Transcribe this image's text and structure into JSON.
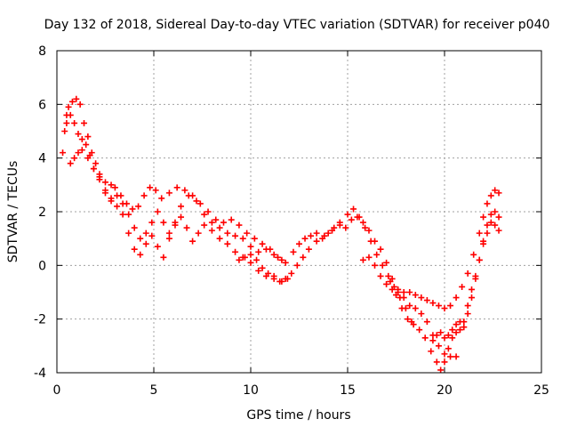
{
  "chart_data": {
    "type": "scatter",
    "title": "Day 132 of 2018, Sidereal Day-to-day VTEC variation (SDTVAR) for receiver p040",
    "xlabel": "GPS time / hours",
    "ylabel": "SDTVAR / TECUs",
    "xlim": [
      0,
      25
    ],
    "ylim": [
      -4,
      8
    ],
    "xticks": [
      0,
      5,
      10,
      15,
      20,
      25
    ],
    "yticks": [
      -4,
      -2,
      0,
      2,
      4,
      6,
      8
    ],
    "xtick_labels": [
      "0",
      "5",
      "10",
      "15",
      "20",
      "25"
    ],
    "ytick_labels": [
      "-4",
      "-2",
      "0",
      "2",
      "4",
      "6",
      "8"
    ],
    "grid": true,
    "legend": "none",
    "marker": "+",
    "series": [
      {
        "name": "track-1",
        "color": "#ff0000",
        "x": [
          0.3,
          0.4,
          0.5,
          0.6,
          0.8,
          1.0,
          1.2,
          1.4,
          1.6,
          1.8,
          2.0,
          2.2,
          2.5,
          2.8,
          3.0,
          3.3,
          3.6,
          3.9,
          4.2,
          4.5,
          4.8,
          5.1,
          5.4,
          5.8,
          6.2,
          6.6,
          7.0,
          7.4,
          7.8,
          8.2,
          8.6,
          9.0,
          9.4,
          9.8,
          10.2,
          10.6,
          11.0,
          11.4,
          11.8
        ],
        "y": [
          4.2,
          5.0,
          5.6,
          5.9,
          6.1,
          6.2,
          6.0,
          5.3,
          4.8,
          4.2,
          3.8,
          3.4,
          3.1,
          3.0,
          2.9,
          2.6,
          2.3,
          2.1,
          2.2,
          2.6,
          2.9,
          2.8,
          2.5,
          2.7,
          2.9,
          2.8,
          2.6,
          2.3,
          2.0,
          1.7,
          1.6,
          1.7,
          1.5,
          1.2,
          1.0,
          0.8,
          0.6,
          0.3,
          0.1
        ]
      },
      {
        "name": "track-2",
        "color": "#ff0000",
        "x": [
          0.5,
          0.7,
          0.9,
          1.1,
          1.3,
          1.5,
          1.7,
          1.9,
          2.2,
          2.5,
          2.8,
          3.1,
          3.4,
          3.7,
          4.0,
          4.3,
          4.6,
          4.9,
          5.2,
          5.5,
          5.8,
          6.1,
          6.4,
          6.8,
          7.2,
          7.6,
          8.0,
          8.4,
          8.8,
          9.2,
          9.6,
          10.0,
          10.4,
          10.8,
          11.2,
          11.6
        ],
        "y": [
          5.3,
          5.6,
          5.3,
          4.9,
          4.7,
          4.5,
          4.1,
          3.6,
          3.3,
          2.8,
          2.5,
          2.6,
          2.3,
          1.9,
          1.4,
          1.0,
          1.2,
          1.6,
          2.0,
          1.6,
          1.2,
          1.5,
          2.2,
          2.6,
          2.4,
          1.9,
          1.6,
          1.4,
          1.2,
          1.1,
          1.0,
          0.7,
          0.5,
          0.6,
          0.4,
          0.2
        ]
      },
      {
        "name": "track-3",
        "color": "#ff0000",
        "x": [
          0.7,
          0.9,
          1.1,
          1.3,
          1.6,
          1.9,
          2.2,
          2.5,
          2.8,
          3.1,
          3.4,
          3.7,
          4.0,
          4.3,
          4.6,
          4.9,
          5.2,
          5.5,
          5.8,
          6.1,
          6.4,
          6.7,
          7.0,
          7.3,
          7.6,
          8.0,
          8.4,
          8.8,
          9.2,
          9.6,
          10.0,
          10.4,
          10.8,
          11.2,
          11.6,
          11.9
        ],
        "y": [
          3.8,
          4.0,
          4.2,
          4.3,
          4.0,
          3.6,
          3.2,
          2.7,
          2.4,
          2.2,
          1.9,
          1.2,
          0.6,
          0.4,
          0.8,
          1.1,
          0.7,
          0.3,
          1.0,
          1.6,
          1.8,
          1.4,
          0.9,
          1.2,
          1.5,
          1.3,
          1.0,
          0.8,
          0.5,
          0.3,
          0.1,
          -0.2,
          -0.4,
          -0.5,
          -0.6,
          -0.5
        ]
      },
      {
        "name": "track-4",
        "color": "#ff0000",
        "x": [
          9.4,
          9.7,
          10.0,
          10.3,
          10.6,
          10.9,
          11.2,
          11.5,
          11.8,
          12.1,
          12.4,
          12.7,
          13.0,
          13.4,
          13.8,
          14.2,
          14.6,
          15.0,
          15.3,
          15.6,
          15.9,
          16.2,
          16.5,
          16.8,
          17.1,
          17.4,
          17.7,
          18.0,
          18.3
        ],
        "y": [
          0.2,
          0.3,
          0.4,
          0.2,
          -0.1,
          -0.3,
          -0.4,
          -0.6,
          -0.5,
          -0.3,
          0.0,
          0.3,
          0.6,
          0.9,
          1.1,
          1.3,
          1.6,
          1.9,
          2.1,
          1.8,
          1.4,
          0.9,
          0.4,
          0.0,
          -0.4,
          -0.8,
          -1.2,
          -1.6,
          -2.1
        ]
      },
      {
        "name": "track-5",
        "color": "#ff0000",
        "x": [
          12.2,
          12.5,
          12.8,
          13.1,
          13.4,
          13.7,
          14.0,
          14.3,
          14.6,
          14.9,
          15.2,
          15.5,
          15.8,
          16.1,
          16.4,
          16.7,
          17.0,
          17.3,
          17.6,
          17.9,
          18.2,
          18.5,
          18.8,
          19.1,
          19.4,
          19.7,
          20.0,
          20.3,
          20.6
        ],
        "y": [
          0.5,
          0.8,
          1.0,
          1.1,
          1.2,
          1.0,
          1.2,
          1.4,
          1.5,
          1.4,
          1.7,
          1.8,
          1.6,
          1.3,
          0.9,
          0.6,
          0.1,
          -0.5,
          -0.9,
          -1.2,
          -1.5,
          -1.6,
          -1.8,
          -2.1,
          -2.6,
          -3.0,
          -3.3,
          -3.4,
          -3.4
        ]
      },
      {
        "name": "track-6",
        "color": "#ff0000",
        "x": [
          15.8,
          16.1,
          16.4,
          16.7,
          17.0,
          17.3,
          17.6,
          17.9,
          18.2,
          18.5,
          18.8,
          19.1,
          19.4,
          19.7,
          20.0,
          20.3,
          20.6,
          20.9,
          21.2,
          21.5,
          21.8,
          22.0,
          22.2,
          22.4,
          22.6,
          22.8
        ],
        "y": [
          0.2,
          0.3,
          0.0,
          -0.4,
          -0.7,
          -0.9,
          -1.0,
          -1.0,
          -1.0,
          -1.1,
          -1.2,
          -1.3,
          -1.4,
          -1.5,
          -1.6,
          -1.5,
          -1.2,
          -0.8,
          -0.3,
          0.4,
          1.2,
          1.8,
          2.3,
          2.6,
          2.8,
          2.7
        ]
      },
      {
        "name": "track-7",
        "color": "#ff0000",
        "x": [
          17.2,
          17.5,
          17.8,
          18.1,
          18.4,
          18.7,
          19.0,
          19.3,
          19.6,
          19.8,
          20.0,
          20.2,
          20.4,
          20.6,
          20.8,
          21.0,
          21.2,
          21.4,
          21.6,
          21.8,
          22.0,
          22.2,
          22.4,
          22.6,
          22.8
        ],
        "y": [
          -0.6,
          -1.1,
          -1.6,
          -2.0,
          -2.2,
          -2.4,
          -2.7,
          -3.2,
          -3.6,
          -3.9,
          -3.6,
          -3.1,
          -2.7,
          -2.5,
          -2.4,
          -2.1,
          -1.5,
          -0.9,
          -0.4,
          0.2,
          0.9,
          1.5,
          1.9,
          2.0,
          1.8
        ]
      },
      {
        "name": "track-8",
        "color": "#ff0000",
        "x": [
          19.4,
          19.6,
          19.8,
          20.0,
          20.2,
          20.4,
          20.6,
          20.8,
          21.0,
          21.2,
          21.4,
          21.6,
          21.8,
          22.0,
          22.2,
          22.4,
          22.6,
          22.8
        ],
        "y": [
          -2.8,
          -2.6,
          -2.5,
          -2.7,
          -2.6,
          -2.4,
          -2.2,
          -2.1,
          -2.3,
          -1.8,
          -1.2,
          -0.5,
          0.2,
          0.8,
          1.2,
          1.6,
          1.5,
          1.3
        ]
      }
    ]
  }
}
